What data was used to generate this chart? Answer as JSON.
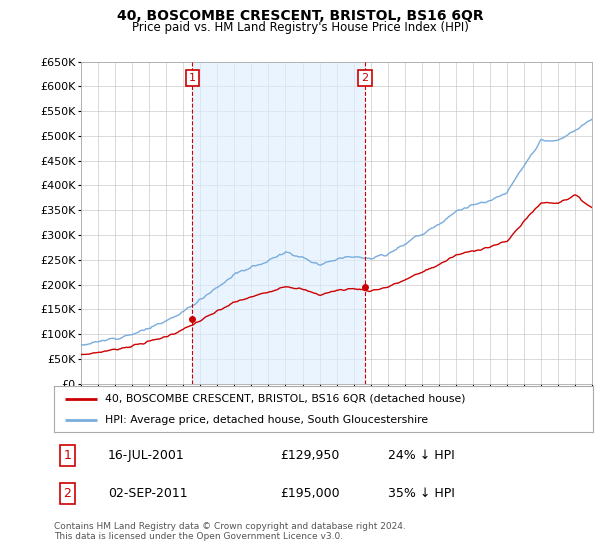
{
  "title": "40, BOSCOMBE CRESCENT, BRISTOL, BS16 6QR",
  "subtitle": "Price paid vs. HM Land Registry's House Price Index (HPI)",
  "ylim": [
    0,
    650000
  ],
  "yticks": [
    0,
    50000,
    100000,
    150000,
    200000,
    250000,
    300000,
    350000,
    400000,
    450000,
    500000,
    550000,
    600000,
    650000
  ],
  "background_color": "#ffffff",
  "grid_color": "#cccccc",
  "hpi_color": "#7aacdc",
  "hpi_fill_color": "#ddeeff",
  "price_color": "#cc0000",
  "vline_color": "#cc0000",
  "annotation_color": "#cc0000",
  "sale1_year": 2001.54,
  "sale1_price": 129950,
  "sale1_label": "1",
  "sale1_date": "16-JUL-2001",
  "sale1_pct": "24% ↓ HPI",
  "sale2_year": 2011.67,
  "sale2_price": 195000,
  "sale2_label": "2",
  "sale2_date": "02-SEP-2011",
  "sale2_pct": "35% ↓ HPI",
  "legend_label_price": "40, BOSCOMBE CRESCENT, BRISTOL, BS16 6QR (detached house)",
  "legend_label_hpi": "HPI: Average price, detached house, South Gloucestershire",
  "footnote": "Contains HM Land Registry data © Crown copyright and database right 2024.\nThis data is licensed under the Open Government Licence v3.0.",
  "xmin": 1995,
  "xmax": 2025
}
